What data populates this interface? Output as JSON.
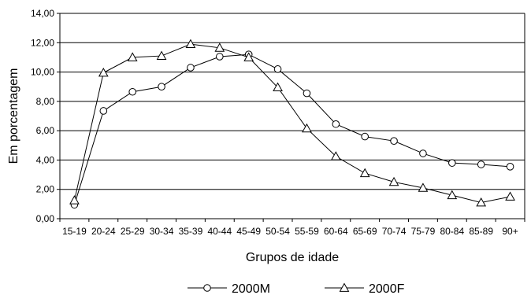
{
  "chart_data": {
    "type": "line",
    "title": "",
    "xlabel": "Grupos de idade",
    "ylabel": "Em porcentagem",
    "ylim": [
      0,
      14
    ],
    "yticks": [
      "0,00",
      "2,00",
      "4,00",
      "6,00",
      "8,00",
      "10,00",
      "12,00",
      "14,00"
    ],
    "grid": "horizontal",
    "legend_position": "bottom",
    "categories": [
      "15-19",
      "20-24",
      "25-29",
      "30-34",
      "35-39",
      "40-44",
      "45-49",
      "50-54",
      "55-59",
      "60-64",
      "65-69",
      "70-74",
      "75-79",
      "80-84",
      "85-89",
      "90+"
    ],
    "series": [
      {
        "name": "2000M",
        "marker": "circle",
        "values": [
          0.95,
          7.35,
          8.65,
          9.0,
          10.3,
          11.05,
          11.2,
          10.2,
          8.55,
          6.45,
          5.6,
          5.3,
          4.45,
          3.8,
          3.7,
          3.55
        ]
      },
      {
        "name": "2000F",
        "marker": "triangle",
        "values": [
          1.25,
          9.95,
          11.0,
          11.1,
          11.9,
          11.65,
          11.0,
          8.95,
          6.15,
          4.25,
          3.1,
          2.5,
          2.1,
          1.6,
          1.1,
          1.5
        ]
      }
    ]
  }
}
